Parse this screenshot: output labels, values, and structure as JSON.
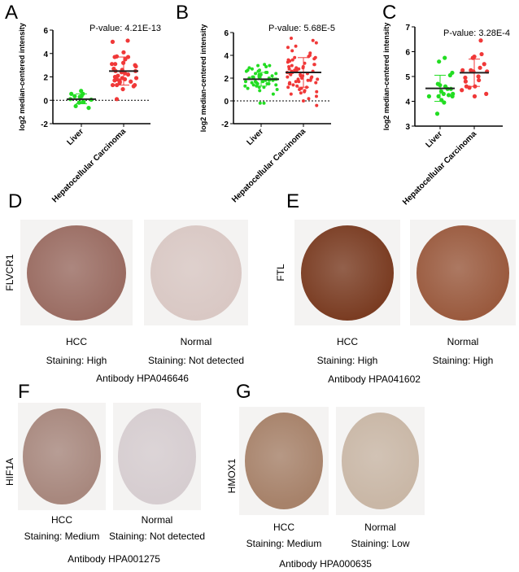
{
  "panel_letters": [
    "A",
    "B",
    "C",
    "D",
    "E",
    "F",
    "G"
  ],
  "chart_data": [
    {
      "type": "scatter",
      "panel": "A",
      "ylabel": "log2 median-centered intensity",
      "ylim": [
        -2,
        6
      ],
      "yticks": [
        -2,
        0,
        2,
        4,
        6
      ],
      "categories": [
        "Liver",
        "Hepatocellular Carcinoma"
      ],
      "pvalue_label": "P-value:",
      "pvalue": "4.21E-13",
      "reference_line": 0,
      "groups": [
        {
          "name": "Liver",
          "color": "#22dd22",
          "center": 0.1,
          "whisker": [
            -0.3,
            0.55
          ],
          "values": [
            0.8,
            0.55,
            0.55,
            0.35,
            0.3,
            0.35,
            0.1,
            0.05,
            -0.15,
            -0.2,
            -0.5,
            -0.65
          ]
        },
        {
          "name": "Hepatocellular Carcinoma",
          "color": "#f03838",
          "center": 2.5,
          "whisker": [
            1.3,
            3.7
          ],
          "values": [
            5.1,
            5.0,
            4.1,
            3.75,
            3.7,
            3.7,
            3.5,
            3.2,
            3.1,
            3.1,
            3.0,
            2.9,
            2.7,
            2.6,
            2.5,
            2.5,
            2.4,
            2.3,
            2.2,
            2.1,
            2.0,
            1.9,
            1.9,
            1.8,
            1.8,
            1.7,
            1.7,
            1.6,
            1.6,
            1.5,
            1.3,
            1.3,
            1.3,
            1.2,
            0.95,
            0.1
          ]
        }
      ]
    },
    {
      "type": "scatter",
      "panel": "B",
      "ylabel": "log2 median-centered intensity",
      "ylim": [
        -2,
        6
      ],
      "yticks": [
        -2,
        0,
        2,
        4,
        6
      ],
      "categories": [
        "Liver",
        "Hepatocellular Carcinoma"
      ],
      "pvalue_label": "P-value:",
      "pvalue": "5.68E-5",
      "reference_line": 0,
      "groups": [
        {
          "name": "Liver",
          "color": "#22dd22",
          "center": 1.9,
          "whisker": [
            1.3,
            2.5
          ],
          "values": [
            3.2,
            3.1,
            3.1,
            3.0,
            2.9,
            2.8,
            2.7,
            2.7,
            2.6,
            2.6,
            2.5,
            2.5,
            2.4,
            2.4,
            2.3,
            2.3,
            2.2,
            2.2,
            2.2,
            2.1,
            2.1,
            2.1,
            2.0,
            2.0,
            2.0,
            1.9,
            1.9,
            1.9,
            1.9,
            1.8,
            1.8,
            1.8,
            1.7,
            1.7,
            1.7,
            1.6,
            1.6,
            1.5,
            1.5,
            1.5,
            1.4,
            1.4,
            1.3,
            1.3,
            1.2,
            1.2,
            1.1,
            1.0,
            0.9,
            0.6,
            -0.2,
            -0.2
          ]
        },
        {
          "name": "Hepatocellular Carcinoma",
          "color": "#f03838",
          "center": 2.5,
          "whisker": [
            1.2,
            3.8
          ],
          "values": [
            5.5,
            5.3,
            5.1,
            4.8,
            4.7,
            4.4,
            4.2,
            4.0,
            3.9,
            3.8,
            3.8,
            3.7,
            3.6,
            3.6,
            3.5,
            3.4,
            3.3,
            3.2,
            3.2,
            3.1,
            3.0,
            3.0,
            2.9,
            2.9,
            2.8,
            2.8,
            2.7,
            2.7,
            2.6,
            2.6,
            2.5,
            2.5,
            2.4,
            2.4,
            2.3,
            2.3,
            2.2,
            2.2,
            2.1,
            2.1,
            2.0,
            2.0,
            1.9,
            1.9,
            1.8,
            1.8,
            1.7,
            1.7,
            1.6,
            1.6,
            1.5,
            1.5,
            1.4,
            1.3,
            1.2,
            1.2,
            1.1,
            1.0,
            0.9,
            0.8,
            0.8,
            0.7,
            0.6,
            0.4,
            0.2,
            0.0,
            -0.4
          ]
        }
      ]
    },
    {
      "type": "scatter",
      "panel": "C",
      "ylabel": "log2 median-centered intensity",
      "ylim": [
        3,
        7
      ],
      "yticks": [
        3,
        4,
        5,
        6,
        7
      ],
      "categories": [
        "Liver",
        "Hepatocellular Carcinoma"
      ],
      "pvalue_label": "P-value:",
      "pvalue": "3.28E-4",
      "groups": [
        {
          "name": "Liver",
          "color": "#22dd22",
          "center": 4.52,
          "whisker": [
            4.0,
            5.05
          ],
          "values": [
            5.75,
            5.6,
            5.15,
            5.05,
            4.7,
            4.65,
            4.6,
            4.5,
            4.5,
            4.4,
            4.3,
            4.3,
            4.25,
            4.2,
            4.2,
            4.2,
            4.05,
            3.95,
            3.5
          ]
        },
        {
          "name": "Hepatocellular Carcinoma",
          "color": "#f03838",
          "center": 5.15,
          "whisker": [
            4.6,
            5.7
          ],
          "values": [
            6.45,
            5.9,
            5.8,
            5.75,
            5.5,
            5.35,
            5.25,
            5.25,
            5.2,
            5.2,
            5.0,
            4.95,
            4.85,
            4.8,
            4.6,
            4.6,
            4.55,
            4.45,
            4.3,
            4.2
          ]
        }
      ]
    }
  ],
  "ihc_panels": [
    {
      "gene": "FLVCR1",
      "antibody": "Antibody HPA046646",
      "hcc_label": "HCC",
      "hcc_staining": "Staining: High",
      "normal_label": "Normal",
      "normal_staining": "Staining: Not detected",
      "hcc_color": "#9a6c62",
      "normal_color": "#d9c8c4"
    },
    {
      "gene": "FTL",
      "antibody": "Antibody HPA041602",
      "hcc_label": "HCC",
      "hcc_staining": "Staining: High",
      "normal_label": "Normal",
      "normal_staining": "Staining: High",
      "hcc_color": "#7a3c22",
      "normal_color": "#9a5a3e"
    },
    {
      "gene": "HIF1A",
      "antibody": "Antibody HPA001275",
      "hcc_label": "HCC",
      "hcc_staining": "Staining: Medium",
      "normal_label": "Normal",
      "normal_staining": "Staining: Not detected",
      "hcc_color": "#a8887e",
      "normal_color": "#d6cdd0"
    },
    {
      "gene": "HMOX1",
      "antibody": "Antibody HPA000635",
      "hcc_label": "HCC",
      "hcc_staining": "Staining: Medium",
      "normal_label": "Normal",
      "normal_staining": "Staining: Low",
      "hcc_color": "#a7826a",
      "normal_color": "#c9b7a6"
    }
  ]
}
